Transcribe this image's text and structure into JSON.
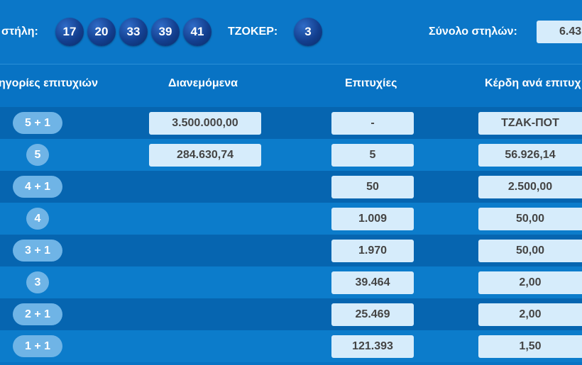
{
  "top": {
    "column_label": "στήλη:",
    "numbers": [
      "17",
      "20",
      "33",
      "39",
      "41"
    ],
    "joker_label": "ΤΖΟΚΕΡ:",
    "joker_number": "3",
    "total_label": "Σύνολο στηλών:",
    "total_value": "6.43"
  },
  "headers": {
    "categories": "ηγορίες επιτυχιών",
    "distributed": "Διανεμόμενα",
    "winners": "Επιτυχίες",
    "prize": "Κέρδη ανά επιτυχ"
  },
  "rows": [
    {
      "category": "5 + 1",
      "distributed": "3.500.000,00",
      "winners": "-",
      "prize": "ΤΖΑΚ-ΠΟΤ"
    },
    {
      "category": "5",
      "distributed": "284.630,74",
      "winners": "5",
      "prize": "56.926,14"
    },
    {
      "category": "4 + 1",
      "distributed": "",
      "winners": "50",
      "prize": "2.500,00"
    },
    {
      "category": "4",
      "distributed": "",
      "winners": "1.009",
      "prize": "50,00"
    },
    {
      "category": "3 + 1",
      "distributed": "",
      "winners": "1.970",
      "prize": "50,00"
    },
    {
      "category": "3",
      "distributed": "",
      "winners": "39.464",
      "prize": "2,00"
    },
    {
      "category": "2 + 1",
      "distributed": "",
      "winners": "25.469",
      "prize": "2,00"
    },
    {
      "category": "1 + 1",
      "distributed": "",
      "winners": "121.393",
      "prize": "1,50"
    }
  ],
  "colors": {
    "background": "#0873c4",
    "row_dark": "#0665b0",
    "row_light": "#0c7ccb",
    "value_box": "#d6ecfb",
    "ball": "#133f8f",
    "pill": "#6fb4e6"
  }
}
